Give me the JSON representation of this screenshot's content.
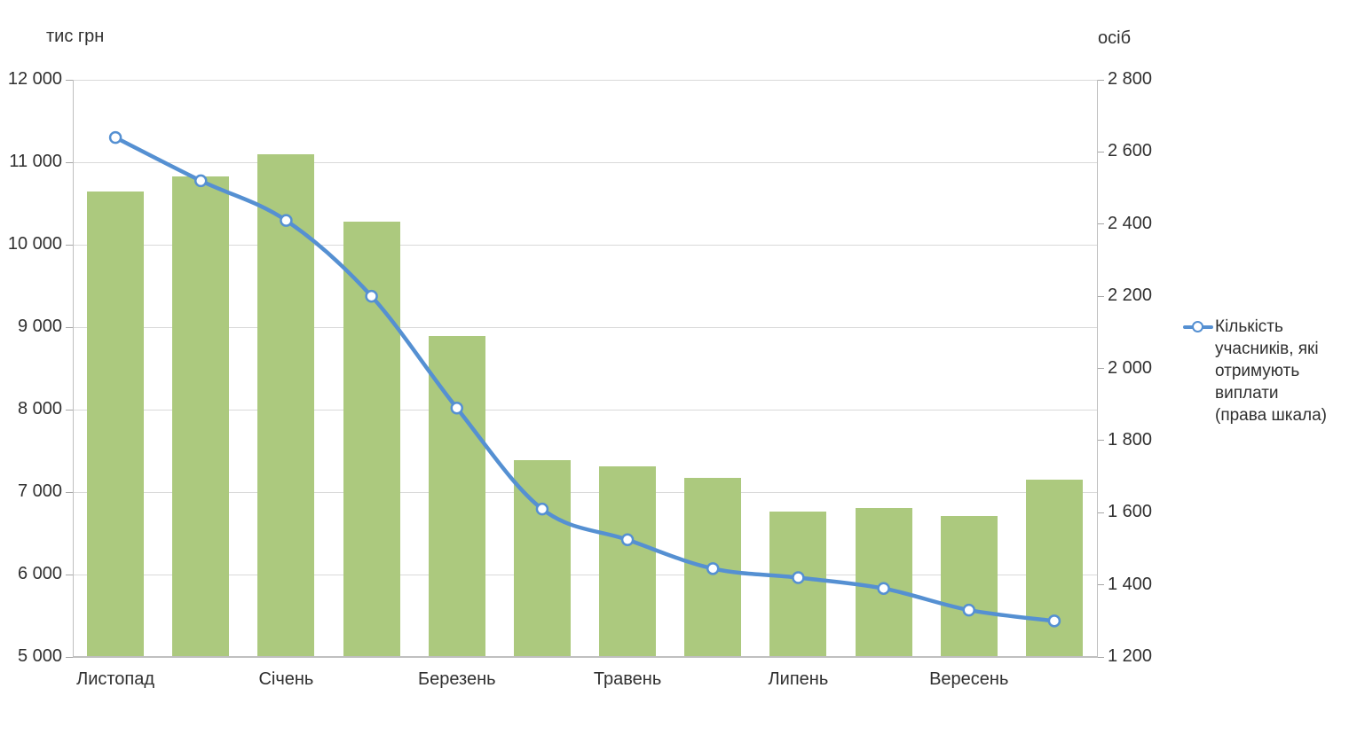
{
  "chart_data": {
    "type": "bar+line combo",
    "categories": [
      "Листопад",
      "",
      "Січень",
      "",
      "Березень",
      "",
      "Травень",
      "",
      "Липень",
      "",
      "Вересень",
      ""
    ],
    "bar_series": {
      "axis": "left",
      "color": "#acc97e",
      "values": [
        10650,
        10830,
        11100,
        10280,
        8890,
        7390,
        7310,
        7170,
        6760,
        6810,
        6710,
        7150
      ]
    },
    "line_series": {
      "axis": "right",
      "color": "#5590d2",
      "marker": "circle-white-fill",
      "legend_label": "Кількість учасників, які отримують виплати (права шкала)",
      "values": [
        2640,
        2520,
        2410,
        2200,
        1890,
        1610,
        1525,
        1445,
        1420,
        1390,
        1330,
        1300
      ]
    },
    "left_axis": {
      "title": "тис грн",
      "min": 5000,
      "max": 12000,
      "step": 1000,
      "ticks": [
        {
          "value": 12000,
          "label": "12 000"
        },
        {
          "value": 11000,
          "label": "11 000"
        },
        {
          "value": 10000,
          "label": "10 000"
        },
        {
          "value": 9000,
          "label": "9 000"
        },
        {
          "value": 8000,
          "label": "8 000"
        },
        {
          "value": 7000,
          "label": "7 000"
        },
        {
          "value": 6000,
          "label": "6 000"
        },
        {
          "value": 5000,
          "label": "5 000"
        }
      ]
    },
    "right_axis": {
      "title": "осіб",
      "min": 1200,
      "max": 2800,
      "step": 200,
      "ticks": [
        {
          "value": 2800,
          "label": "2 800"
        },
        {
          "value": 2600,
          "label": "2 600"
        },
        {
          "value": 2400,
          "label": "2 400"
        },
        {
          "value": 2200,
          "label": "2 200"
        },
        {
          "value": 2000,
          "label": "2 000"
        },
        {
          "value": 1800,
          "label": "1 800"
        },
        {
          "value": 1600,
          "label": "1 600"
        },
        {
          "value": 1400,
          "label": "1 400"
        },
        {
          "value": 1200,
          "label": "1 200"
        }
      ]
    },
    "legend": {
      "position": "right",
      "lines": [
        "Кількість",
        "учасників, які",
        "отримують",
        "виплати",
        "(права шкала)"
      ]
    },
    "layout_hints": {
      "grid": "horizontal-major-left-axis",
      "background": "#ffffff",
      "gridline_color": "#d9d9d9",
      "axis_line_color": "#bfbfbf"
    }
  }
}
